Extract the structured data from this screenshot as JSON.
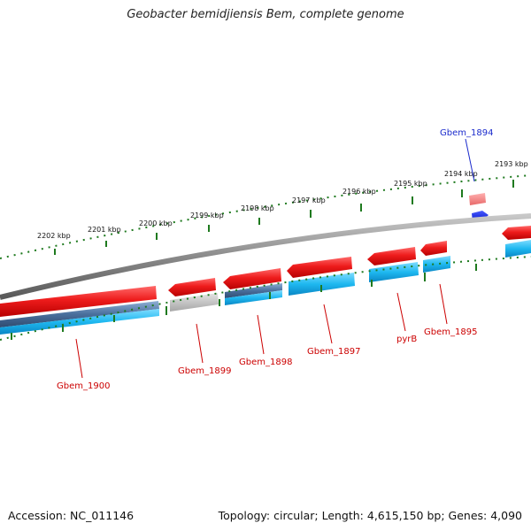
{
  "title": "Geobacter bemidjiensis Bem, complete genome",
  "footer": {
    "accession": "Accession: NC_011146",
    "topology": "Topology: circular; Length: 4,615,150 bp; Genes: 4,090"
  },
  "ruler": {
    "ticks": [
      "2193 kbp",
      "2194 kbp",
      "2195 kbp",
      "2196 kbp",
      "2197 kbp",
      "2198 kbp",
      "2199 kbp",
      "2200 kbp",
      "2201 kbp",
      "2202 kbp"
    ]
  },
  "genes": [
    {
      "id": "Gbem_1894",
      "label": "Gbem_1894",
      "color": "#1a2acc"
    },
    {
      "id": "Gbem_1895",
      "label": "Gbem_1895",
      "color": "#cc0000"
    },
    {
      "id": "pyrB",
      "label": "pyrB",
      "color": "#cc0000"
    },
    {
      "id": "Gbem_1897",
      "label": "Gbem_1897",
      "color": "#cc0000"
    },
    {
      "id": "Gbem_1898",
      "label": "Gbem_1898",
      "color": "#cc0000"
    },
    {
      "id": "Gbem_1899",
      "label": "Gbem_1899",
      "color": "#cc0000"
    },
    {
      "id": "Gbem_1900",
      "label": "Gbem_1900",
      "color": "#cc0000"
    }
  ],
  "colors": {
    "gene_red": "#ee1c1c",
    "cds_blue": "#1eb8f0",
    "cds_steel": "#4a6f9c",
    "backbone": "#8a8a8a",
    "ruler_green": "#1f7a1f"
  }
}
